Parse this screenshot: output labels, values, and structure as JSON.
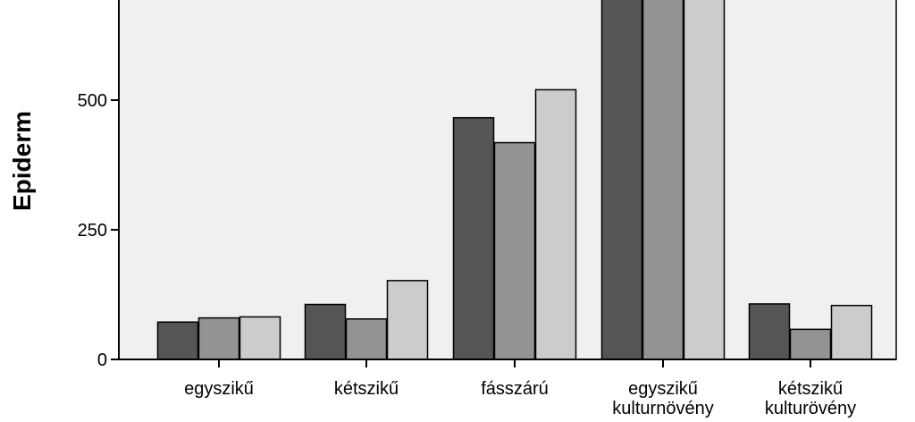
{
  "chart_data": {
    "type": "bar",
    "ylabel": "Epiderm",
    "ylim": [
      0,
      700
    ],
    "yticks": [
      0,
      250,
      500
    ],
    "grid": false,
    "categories": [
      [
        "egyszikű"
      ],
      [
        "kétszikű"
      ],
      [
        "fásszárú"
      ],
      [
        "egyszikű",
        "kulturnövény"
      ],
      [
        "kétszikű",
        "kulturövény"
      ]
    ],
    "series": [
      {
        "color": "#555555",
        "values": [
          72,
          106,
          466,
          700,
          107
        ]
      },
      {
        "color": "#939393",
        "values": [
          80,
          78,
          418,
          700,
          58
        ]
      },
      {
        "color": "#cccccc",
        "values": [
          82,
          152,
          520,
          700,
          104
        ]
      }
    ],
    "colors": {
      "plot_background": "#f0f0f0",
      "axis": "#000000",
      "bar_outline": "#000000"
    }
  }
}
